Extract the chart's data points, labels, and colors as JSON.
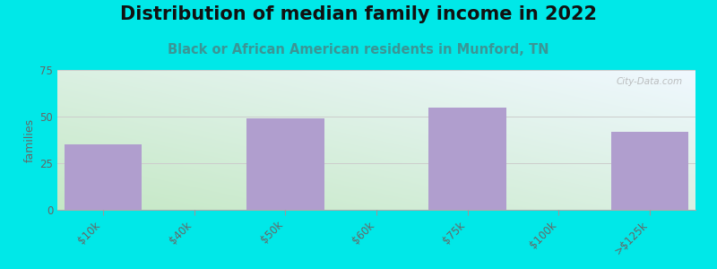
{
  "title": "Distribution of median family income in 2022",
  "subtitle": "Black or African American residents in Munford, TN",
  "ylabel": "families",
  "categories": [
    "$10k",
    "$40k",
    "$50k",
    "$60k",
    "$75k",
    "$100k",
    ">$125k"
  ],
  "values": [
    35,
    0,
    49,
    0,
    55,
    0,
    42
  ],
  "bar_color": "#b09ece",
  "ylim": [
    0,
    75
  ],
  "yticks": [
    0,
    25,
    50,
    75
  ],
  "background_color": "#00e8e8",
  "title_fontsize": 15,
  "subtitle_fontsize": 10.5,
  "subtitle_color": "#3a9696",
  "watermark": "City-Data.com",
  "bar_width": 0.85,
  "tick_label_color": "#666666",
  "tick_label_size": 8.5,
  "ylabel_fontsize": 9,
  "grid_color": "#cccccc",
  "grad_color_bottom_left": "#c5e8c5",
  "grad_color_top_right": "#f0f8ff"
}
